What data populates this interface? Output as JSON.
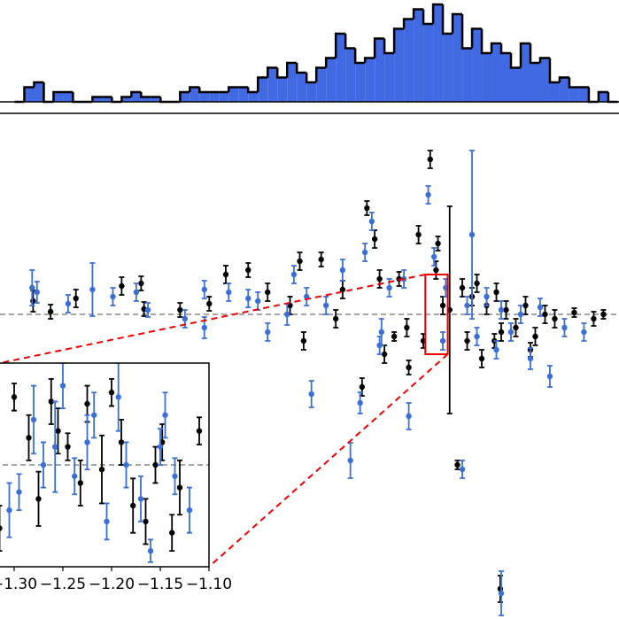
{
  "chart_data": [
    {
      "type": "histogram",
      "color": "#4169e1",
      "edgecolor": "#000000",
      "ylim": [
        0,
        20
      ],
      "bins": [
        -5.55,
        -5.45,
        -5.35,
        -5.25,
        -5.15,
        -5.05,
        -4.95,
        -4.85,
        -4.75,
        -4.65,
        -4.55,
        -4.45,
        -4.35,
        -4.25,
        -4.15,
        -4.05,
        -3.95,
        -3.85,
        -3.75,
        -3.65,
        -3.55,
        -3.45,
        -3.35,
        -3.25,
        -3.15,
        -3.05,
        -2.95,
        -2.85,
        -2.75,
        -2.65,
        -2.55,
        -2.45,
        -2.35,
        -2.25,
        -2.15,
        -2.05,
        -1.95,
        -1.85,
        -1.75,
        -1.65,
        -1.55,
        -1.45,
        -1.35,
        -1.25,
        -1.15,
        -1.05,
        -0.95,
        -0.85,
        -0.75,
        -0.65,
        -0.55,
        -0.45,
        -0.35,
        -0.25,
        -0.15,
        -0.05,
        0.05,
        0.15,
        0.25,
        0.35,
        0.45,
        0.55,
        0.65
      ],
      "counts": [
        0,
        3,
        4,
        0,
        2,
        2,
        0,
        0,
        1,
        1,
        0,
        1,
        2,
        1,
        1,
        0,
        0,
        2,
        3,
        2,
        2,
        2,
        3,
        3,
        2,
        5,
        7,
        5,
        8,
        6,
        4,
        7,
        9,
        14,
        11,
        8,
        9,
        13,
        10,
        15,
        17,
        19,
        16,
        20,
        14,
        18,
        11,
        15,
        10,
        12,
        10,
        7,
        12,
        8,
        9,
        4,
        5,
        3,
        3,
        0,
        2,
        0
      ]
    },
    {
      "type": "errorbar",
      "xlim": [
        -5.7,
        0.66
      ],
      "ylim": [
        -3.44,
        2.25
      ],
      "hline": 0,
      "series": [
        {
          "color": "#000000",
          "x": [
            -5.36,
            -5.18,
            -4.45,
            -4.25,
            -4.22,
            -3.85,
            -3.55,
            -3.15,
            -2.95,
            -2.72,
            -2.62,
            -2.58,
            -2.4,
            -2.25,
            -2.18,
            -1.98,
            -1.93,
            -1.85,
            -1.8,
            -1.75,
            -1.6,
            -1.52,
            -1.5,
            -1.4,
            -1.28,
            -1.22,
            -1.15,
            -1.08,
            -1.0,
            -0.95,
            -0.9,
            -0.85,
            -0.75,
            -0.7,
            -0.6,
            -0.55,
            -0.5,
            -0.4,
            -0.3,
            -0.2,
            -0.1,
            0.0,
            0.2,
            0.4,
            0.5,
            -1.65,
            -0.62,
            -1.2,
            -0.8,
            -1.35,
            -3.38,
            -0.25,
            -4.92,
            -0.56
          ],
          "values": [
            0.15,
            0.03,
            0.32,
            0.35,
            0.06,
            0.05,
            0.12,
            0.5,
            0.25,
            0.1,
            0.6,
            -0.3,
            0.62,
            -0.05,
            0.28,
            -0.82,
            1.2,
            0.85,
            0.4,
            -0.45,
            0.4,
            -0.15,
            -0.6,
            0.9,
            1.75,
            0.5,
            0.1,
            0.05,
            -1.7,
            0.3,
            -0.3,
            0.2,
            -0.5,
            0.1,
            0.25,
            -0.2,
            0.05,
            -0.15,
            0.1,
            -0.25,
            0.0,
            -0.05,
            0.02,
            -0.05,
            0.0,
            -0.25,
            -0.3,
            0.8,
            0.35,
            -0.3,
            0.45,
            -0.4,
            0.18,
            -3.1
          ],
          "errors": [
            0.12,
            0.08,
            0.1,
            0.08,
            0.08,
            0.08,
            0.08,
            0.08,
            0.1,
            0.1,
            0.1,
            0.1,
            0.08,
            0.1,
            0.1,
            0.1,
            0.08,
            0.1,
            0.1,
            0.1,
            0.08,
            0.1,
            0.08,
            0.1,
            0.1,
            0.1,
            0.1,
            1.17,
            0.05,
            0.1,
            0.1,
            0.1,
            0.1,
            0.1,
            0.1,
            0.1,
            0.1,
            0.1,
            0.1,
            0.1,
            0.1,
            0.1,
            0.05,
            0.08,
            0.05,
            0.05,
            0.08,
            0.08,
            0.1,
            0.08,
            0.1,
            0.08,
            0.1,
            0.15
          ]
        },
        {
          "color": "#3a6fd8",
          "x": [
            -5.37,
            -5.32,
            -5.0,
            -4.75,
            -4.54,
            -4.3,
            -4.18,
            -3.8,
            -3.6,
            -3.6,
            -3.35,
            -3.15,
            -2.95,
            -2.75,
            -2.68,
            -2.55,
            -2.5,
            -2.35,
            -2.18,
            -2.1,
            -2.0,
            -1.95,
            -1.88,
            -1.8,
            -1.7,
            -1.55,
            -1.5,
            -1.3,
            -1.24,
            -1.15,
            -1.12,
            -0.95,
            -0.9,
            -0.85,
            -0.8,
            -0.7,
            -0.6,
            -0.55,
            -0.45,
            -0.35,
            -0.25,
            -0.15,
            -0.05,
            0.1,
            0.3,
            -0.55,
            -1.78,
            -3.05
          ],
          "values": [
            0.3,
            0.25,
            0.12,
            0.28,
            0.2,
            0.25,
            0.05,
            -0.05,
            0.28,
            -0.15,
            0.25,
            0.18,
            -0.2,
            0.0,
            0.45,
            0.2,
            -0.9,
            0.1,
            0.5,
            -1.65,
            -1.0,
            0.7,
            1.05,
            -0.35,
            0.3,
            0.4,
            -1.15,
            1.35,
            0.65,
            -0.3,
            0.3,
            -1.75,
            0.1,
            0.9,
            -0.25,
            0.2,
            -0.4,
            0.05,
            -0.2,
            0.0,
            -0.5,
            0.08,
            -0.7,
            -0.15,
            -0.2,
            -3.15,
            -0.2,
            0.15
          ],
          "errors": [
            0.2,
            0.12,
            0.1,
            0.3,
            0.1,
            0.1,
            0.08,
            0.1,
            0.1,
            0.12,
            0.1,
            0.1,
            0.1,
            0.12,
            0.1,
            0.1,
            0.15,
            0.1,
            0.12,
            0.2,
            0.12,
            0.1,
            0.1,
            0.1,
            0.1,
            0.1,
            0.15,
            0.1,
            0.1,
            0.1,
            0.1,
            0.1,
            0.1,
            0.95,
            0.1,
            0.1,
            0.1,
            0.1,
            0.1,
            0.1,
            0.12,
            0.1,
            0.12,
            0.1,
            0.1,
            0.25,
            0.15,
            0.1
          ]
        }
      ]
    },
    {
      "type": "errorbar",
      "xlim": [
        -1.33,
        -1.1
      ],
      "ylim": [
        -0.45,
        0.45
      ],
      "hline": 0,
      "xticks": [
        {
          "value": -1.3,
          "label": "−1.30"
        },
        {
          "value": -1.25,
          "label": "−1.25"
        },
        {
          "value": -1.2,
          "label": "−1.20"
        },
        {
          "value": -1.15,
          "label": "−1.15"
        },
        {
          "value": -1.1,
          "label": "−1.10"
        }
      ],
      "series": [
        {
          "color": "#000000",
          "x": [
            -1.327,
            -1.315,
            -1.3,
            -1.285,
            -1.275,
            -1.262,
            -1.255,
            -1.245,
            -1.232,
            -1.225,
            -1.21,
            -1.2,
            -1.19,
            -1.178,
            -1.165,
            -1.155,
            -1.148,
            -1.138,
            -1.13,
            -1.11
          ],
          "values": [
            0.05,
            -0.28,
            0.3,
            0.12,
            -0.15,
            0.28,
            0.15,
            0.08,
            -0.08,
            0.27,
            -0.02,
            0.32,
            0.1,
            -0.18,
            -0.25,
            0.0,
            0.1,
            -0.3,
            -0.1,
            0.15
          ],
          "errors": [
            0.08,
            0.1,
            0.06,
            0.1,
            0.12,
            0.1,
            0.1,
            0.06,
            0.1,
            0.08,
            0.15,
            0.06,
            0.1,
            0.12,
            0.1,
            0.08,
            0.08,
            0.08,
            0.12,
            0.06
          ]
        },
        {
          "color": "#3a6fd8",
          "x": [
            -1.32,
            -1.305,
            -1.295,
            -1.28,
            -1.27,
            -1.258,
            -1.25,
            -1.238,
            -1.225,
            -1.218,
            -1.205,
            -1.193,
            -1.185,
            -1.17,
            -1.16,
            -1.15,
            -1.145,
            -1.135,
            -1.12
          ],
          "values": [
            0.25,
            -0.2,
            -0.12,
            0.2,
            0.0,
            0.08,
            0.35,
            -0.05,
            0.1,
            0.22,
            -0.25,
            0.3,
            0.0,
            -0.15,
            -0.38,
            0.08,
            0.22,
            -0.05,
            -0.2
          ],
          "errors": [
            0.1,
            0.12,
            0.08,
            0.15,
            0.1,
            0.2,
            0.1,
            0.08,
            0.12,
            0.1,
            0.08,
            0.15,
            0.1,
            0.1,
            0.05,
            0.08,
            0.1,
            0.08,
            0.1
          ]
        }
      ]
    }
  ]
}
